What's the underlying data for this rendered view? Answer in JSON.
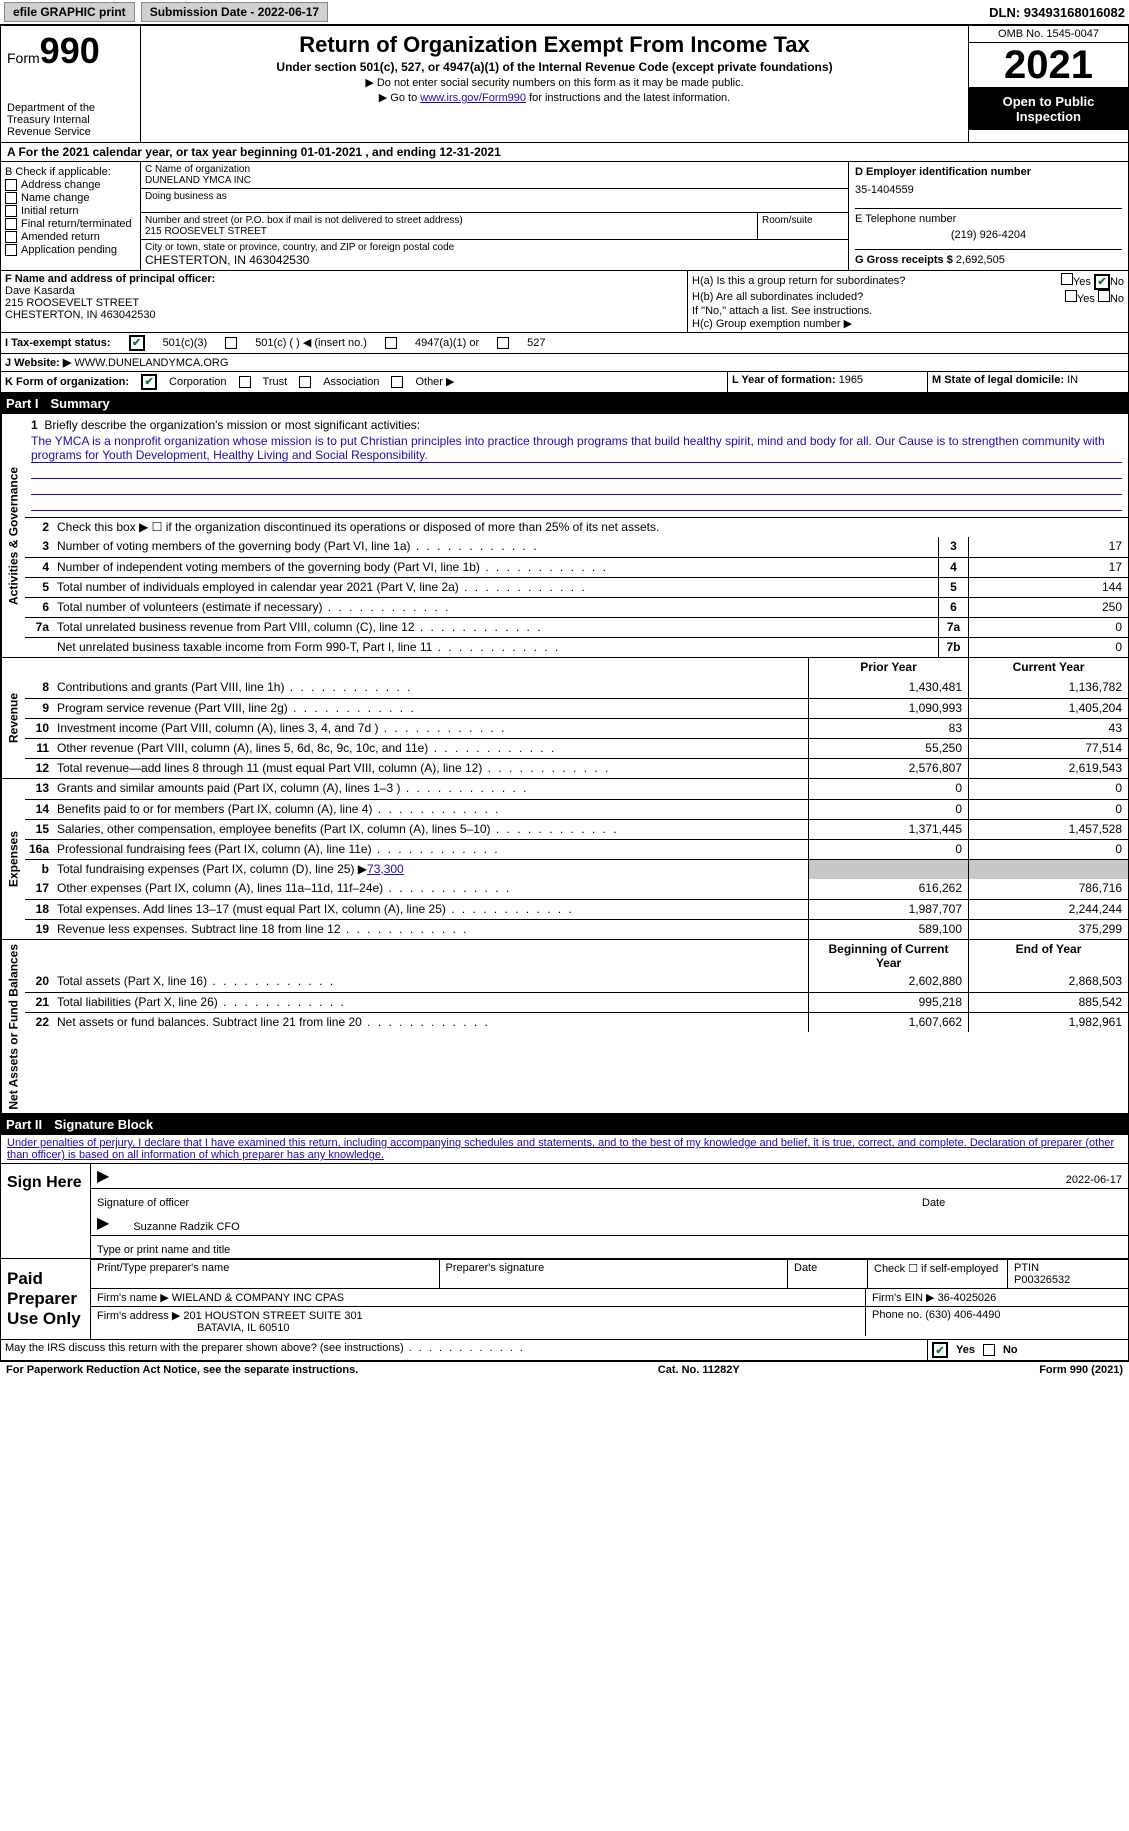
{
  "topbar": {
    "efile": "efile GRAPHIC print",
    "submission": "Submission Date - 2022-06-17",
    "dln": "DLN: 93493168016082"
  },
  "header": {
    "form": "Form",
    "num": "990",
    "dept": "Department of the Treasury Internal Revenue Service",
    "title": "Return of Organization Exempt From Income Tax",
    "sub": "Under section 501(c), 527, or 4947(a)(1) of the Internal Revenue Code (except private foundations)",
    "note1": "▶ Do not enter social security numbers on this form as it may be made public.",
    "note2_pre": "▶ Go to ",
    "note2_link": "www.irs.gov/Form990",
    "note2_post": " for instructions and the latest information.",
    "omb": "OMB No. 1545-0047",
    "year": "2021",
    "inspect": "Open to Public Inspection"
  },
  "a": "A For the 2021 calendar year, or tax year beginning 01-01-2021   , and ending 12-31-2021",
  "b": {
    "label": "B Check if applicable:",
    "opts": [
      "Address change",
      "Name change",
      "Initial return",
      "Final return/terminated",
      "Amended return",
      "Application pending"
    ]
  },
  "c": {
    "name_label": "C Name of organization",
    "name": "DUNELAND YMCA INC",
    "dba": "Doing business as",
    "addr_label": "Number and street (or P.O. box if mail is not delivered to street address)",
    "room": "Room/suite",
    "addr": "215 ROOSEVELT STREET",
    "city_label": "City or town, state or province, country, and ZIP or foreign postal code",
    "city": "CHESTERTON, IN  463042530"
  },
  "d": {
    "label": "D Employer identification number",
    "val": "35-1404559"
  },
  "e": {
    "label": "E Telephone number",
    "val": "(219) 926-4204"
  },
  "g": {
    "label": "G Gross receipts $",
    "val": "2,692,505"
  },
  "f": {
    "label": "F Name and address of principal officer:",
    "name": "Dave Kasarda",
    "addr1": "215 ROOSEVELT STREET",
    "addr2": "CHESTERTON, IN  463042530"
  },
  "h": {
    "a": "H(a)  Is this a group return for subordinates?",
    "b": "H(b)  Are all subordinates included?",
    "note": "If \"No,\" attach a list. See instructions.",
    "c": "H(c)  Group exemption number ▶",
    "yes": "Yes",
    "no": "No"
  },
  "i": {
    "label": "I   Tax-exempt status:",
    "o1": "501(c)(3)",
    "o2": "501(c) (  ) ◀ (insert no.)",
    "o3": "4947(a)(1) or",
    "o4": "527"
  },
  "j": {
    "label": "J   Website: ▶",
    "val": "WWW.DUNELANDYMCA.ORG"
  },
  "k": {
    "label": "K Form of organization:",
    "o1": "Corporation",
    "o2": "Trust",
    "o3": "Association",
    "o4": "Other ▶"
  },
  "l": {
    "label": "L Year of formation:",
    "val": "1965"
  },
  "m": {
    "label": "M State of legal domicile:",
    "val": "IN"
  },
  "part1": {
    "label": "Part I",
    "title": "Summary"
  },
  "vlabels": {
    "ag": "Activities & Governance",
    "rev": "Revenue",
    "exp": "Expenses",
    "na": "Net Assets or Fund Balances"
  },
  "s1": {
    "label": "Briefly describe the organization's mission or most significant activities:",
    "text": "The YMCA is a nonprofit organization whose mission is to put Christian principles into practice through programs that build healthy spirit, mind and body for all. Our Cause is to strengthen community with programs for Youth Development, Healthy Living and Social Responsibility."
  },
  "s2": "Check this box ▶ ☐ if the organization discontinued its operations or disposed of more than 25% of its net assets.",
  "lines_ag": [
    {
      "no": "3",
      "desc": "Number of voting members of the governing body (Part VI, line 1a)",
      "box": "3",
      "val": "17"
    },
    {
      "no": "4",
      "desc": "Number of independent voting members of the governing body (Part VI, line 1b)",
      "box": "4",
      "val": "17"
    },
    {
      "no": "5",
      "desc": "Total number of individuals employed in calendar year 2021 (Part V, line 2a)",
      "box": "5",
      "val": "144"
    },
    {
      "no": "6",
      "desc": "Total number of volunteers (estimate if necessary)",
      "box": "6",
      "val": "250"
    },
    {
      "no": "7a",
      "desc": "Total unrelated business revenue from Part VIII, column (C), line 12",
      "box": "7a",
      "val": "0"
    },
    {
      "no": "",
      "desc": "Net unrelated business taxable income from Form 990-T, Part I, line 11",
      "box": "7b",
      "val": "0"
    }
  ],
  "colhdr": {
    "prior": "Prior Year",
    "current": "Current Year",
    "boy": "Beginning of Current Year",
    "eoy": "End of Year"
  },
  "lines_rev": [
    {
      "no": "8",
      "desc": "Contributions and grants (Part VIII, line 1h)",
      "p": "1,430,481",
      "c": "1,136,782"
    },
    {
      "no": "9",
      "desc": "Program service revenue (Part VIII, line 2g)",
      "p": "1,090,993",
      "c": "1,405,204"
    },
    {
      "no": "10",
      "desc": "Investment income (Part VIII, column (A), lines 3, 4, and 7d )",
      "p": "83",
      "c": "43"
    },
    {
      "no": "11",
      "desc": "Other revenue (Part VIII, column (A), lines 5, 6d, 8c, 9c, 10c, and 11e)",
      "p": "55,250",
      "c": "77,514"
    },
    {
      "no": "12",
      "desc": "Total revenue—add lines 8 through 11 (must equal Part VIII, column (A), line 12)",
      "p": "2,576,807",
      "c": "2,619,543"
    }
  ],
  "lines_exp": [
    {
      "no": "13",
      "desc": "Grants and similar amounts paid (Part IX, column (A), lines 1–3 )",
      "p": "0",
      "c": "0"
    },
    {
      "no": "14",
      "desc": "Benefits paid to or for members (Part IX, column (A), line 4)",
      "p": "0",
      "c": "0"
    },
    {
      "no": "15",
      "desc": "Salaries, other compensation, employee benefits (Part IX, column (A), lines 5–10)",
      "p": "1,371,445",
      "c": "1,457,528"
    },
    {
      "no": "16a",
      "desc": "Professional fundraising fees (Part IX, column (A), line 11e)",
      "p": "0",
      "c": "0"
    }
  ],
  "line_b": {
    "no": "b",
    "desc": "Total fundraising expenses (Part IX, column (D), line 25) ▶",
    "val": "73,300"
  },
  "lines_exp2": [
    {
      "no": "17",
      "desc": "Other expenses (Part IX, column (A), lines 11a–11d, 11f–24e)",
      "p": "616,262",
      "c": "786,716"
    },
    {
      "no": "18",
      "desc": "Total expenses. Add lines 13–17 (must equal Part IX, column (A), line 25)",
      "p": "1,987,707",
      "c": "2,244,244"
    },
    {
      "no": "19",
      "desc": "Revenue less expenses. Subtract line 18 from line 12",
      "p": "589,100",
      "c": "375,299"
    }
  ],
  "lines_na": [
    {
      "no": "20",
      "desc": "Total assets (Part X, line 16)",
      "p": "2,602,880",
      "c": "2,868,503"
    },
    {
      "no": "21",
      "desc": "Total liabilities (Part X, line 26)",
      "p": "995,218",
      "c": "885,542"
    },
    {
      "no": "22",
      "desc": "Net assets or fund balances. Subtract line 21 from line 20",
      "p": "1,607,662",
      "c": "1,982,961"
    }
  ],
  "part2": {
    "label": "Part II",
    "title": "Signature Block"
  },
  "perjury": "Under penalties of perjury, I declare that I have examined this return, including accompanying schedules and statements, and to the best of my knowledge and belief, it is true, correct, and complete. Declaration of preparer (other than officer) is based on all information of which preparer has any knowledge.",
  "sign": {
    "here": "Sign Here",
    "sig_label": "Signature of officer",
    "date_label": "Date",
    "date": "2022-06-17",
    "name": "Suzanne Radzik  CFO",
    "name_label": "Type or print name and title"
  },
  "prep": {
    "label": "Paid Preparer Use Only",
    "h1": "Print/Type preparer's name",
    "h2": "Preparer's signature",
    "h3": "Date",
    "h4_pre": "Check ☐ if self-employed",
    "h5": "PTIN",
    "ptin": "P00326532",
    "firm_label": "Firm's name    ▶",
    "firm": "WIELAND & COMPANY INC CPAS",
    "ein_label": "Firm's EIN ▶",
    "ein": "36-4025026",
    "addr_label": "Firm's address ▶",
    "addr1": "201 HOUSTON STREET SUITE 301",
    "addr2": "BATAVIA, IL  60510",
    "phone_label": "Phone no.",
    "phone": "(630) 406-4490"
  },
  "discuss": "May the IRS discuss this return with the preparer shown above? (see instructions)",
  "footer": {
    "left": "For Paperwork Reduction Act Notice, see the separate instructions.",
    "mid": "Cat. No. 11282Y",
    "right": "Form 990 (2021)"
  }
}
